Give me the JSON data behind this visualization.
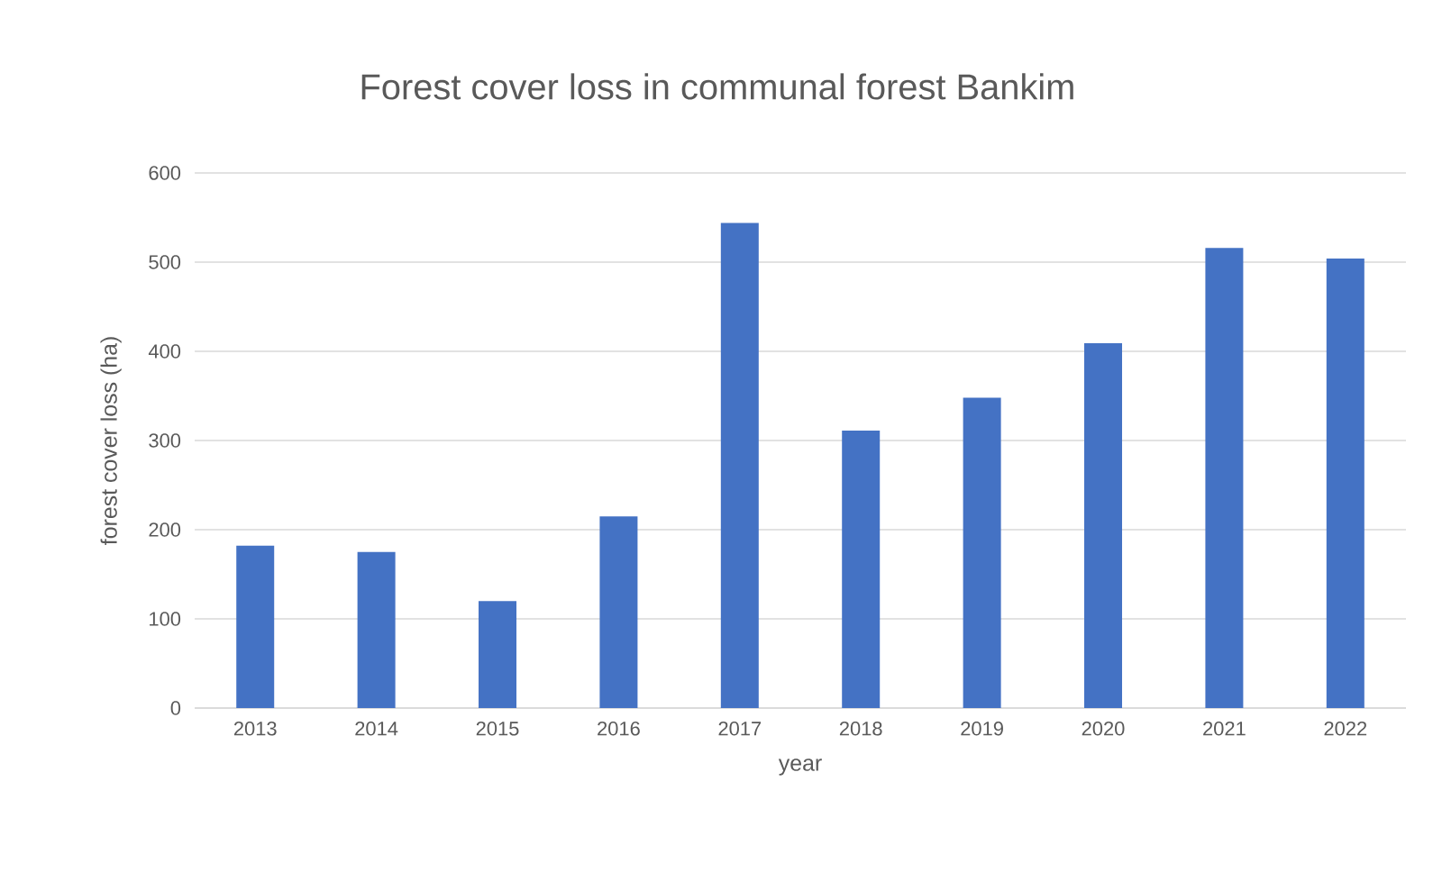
{
  "chart_data": {
    "type": "bar",
    "title": "Forest cover loss in communal forest Bankim",
    "xlabel": "year",
    "ylabel": "forest cover loss (ha)",
    "categories": [
      "2013",
      "2014",
      "2015",
      "2016",
      "2017",
      "2018",
      "2019",
      "2020",
      "2021",
      "2022"
    ],
    "values": [
      182,
      175,
      120,
      215,
      544,
      311,
      348,
      409,
      516,
      504
    ],
    "color": "#4472c4",
    "ylim": [
      0,
      600
    ],
    "yticks": [
      0,
      100,
      200,
      300,
      400,
      500,
      600
    ],
    "grid": "y"
  }
}
